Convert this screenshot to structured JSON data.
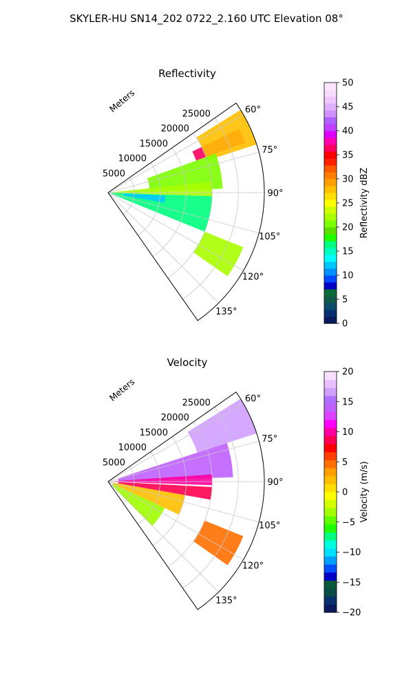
{
  "figure": {
    "suptitle": "SKYLER-HU  SN14_202  0722_2.160 UTC Elevation 08°"
  },
  "colors": {
    "reflectivity_cmap": [
      "#0a1a5a",
      "#06306e",
      "#0c4a6a",
      "#0f5a4a",
      "#0a6a3a",
      "#0000c8",
      "#0048ff",
      "#0090ff",
      "#00c8ff",
      "#00ffff",
      "#00ffc0",
      "#00ff80",
      "#20ff00",
      "#5ae000",
      "#7cff00",
      "#a8ff00",
      "#d0ff00",
      "#ffff00",
      "#ffe000",
      "#ffc000",
      "#ffa000",
      "#ff8000",
      "#ff5a00",
      "#ff2000",
      "#ff0000",
      "#ff0060",
      "#ff00b0",
      "#e000ff",
      "#c040ff",
      "#b060ff",
      "#d090ff",
      "#e0b0ff",
      "#f0c8ff",
      "#f8dcff",
      "#ffe8ff"
    ],
    "velocity_cmap": [
      "#0a1a5a",
      "#06306e",
      "#0c4a4a",
      "#0a5a3a",
      "#0000c8",
      "#0050ff",
      "#00a0ff",
      "#00e0ff",
      "#00ffe0",
      "#00ff80",
      "#20ff00",
      "#60ff00",
      "#a0ff00",
      "#d0ff00",
      "#ffff00",
      "#ffe000",
      "#ffc000",
      "#ffa000",
      "#ff7000",
      "#ff4000",
      "#ff0000",
      "#ff0050",
      "#ff00a0",
      "#ff00ff",
      "#e040ff",
      "#c060ff",
      "#b070ff",
      "#d0a0ff",
      "#e8c0ff",
      "#f8e0ff"
    ]
  },
  "chart_data": [
    {
      "type": "heatmap",
      "subtype": "polar-sector",
      "title": "Reflectivity",
      "radial_label": "Meters",
      "r_ticks": [
        "5000",
        "10000",
        "15000",
        "20000",
        "25000"
      ],
      "r_max": 30000,
      "theta_ticks": [
        "60°",
        "75°",
        "90°",
        "105°",
        "120°",
        "135°"
      ],
      "theta_range_deg": [
        55,
        145
      ],
      "colorbar": {
        "label": "Reflectivity dBZ",
        "ticks": [
          "50",
          "45",
          "40",
          "35",
          "30",
          "25",
          "20",
          "15",
          "10",
          "5",
          "0"
        ],
        "range": [
          0,
          50
        ]
      },
      "regions": [
        {
          "az_range": [
            64,
            70
          ],
          "r_range": [
            18000,
            28000
          ],
          "value": 36
        },
        {
          "az_range": [
            58,
            72
          ],
          "r_range": [
            20000,
            30000
          ],
          "value": 28
        },
        {
          "az_range": [
            70,
            88
          ],
          "r_range": [
            8000,
            22000
          ],
          "value": 20
        },
        {
          "az_range": [
            84,
            92
          ],
          "r_range": [
            1000,
            20000
          ],
          "value": 22
        },
        {
          "az_range": [
            92,
            112
          ],
          "r_range": [
            500,
            20000
          ],
          "value": 16
        },
        {
          "az_range": [
            112,
            125
          ],
          "r_range": [
            20000,
            28000
          ],
          "value": 22
        },
        {
          "az_range": [
            93,
            100
          ],
          "r_range": [
            3000,
            11000
          ],
          "value": 12
        }
      ]
    },
    {
      "type": "heatmap",
      "subtype": "polar-sector",
      "title": "Velocity",
      "radial_label": "Meters",
      "r_ticks": [
        "5000",
        "10000",
        "15000",
        "20000",
        "25000"
      ],
      "r_max": 30000,
      "theta_ticks": [
        "60°",
        "75°",
        "90°",
        "105°",
        "120°",
        "135°"
      ],
      "theta_range_deg": [
        55,
        145
      ],
      "colorbar": {
        "label": "Velocity (m/s)",
        "ticks": [
          "20",
          "15",
          "10",
          "5",
          "0",
          "−5",
          "−10",
          "−15",
          "−20"
        ],
        "range": [
          -20,
          20
        ]
      },
      "regions": [
        {
          "az_range": [
            58,
            72
          ],
          "r_range": [
            18000,
            30000
          ],
          "value": 16
        },
        {
          "az_range": [
            72,
            88
          ],
          "r_range": [
            2000,
            24000
          ],
          "value": 14
        },
        {
          "az_range": [
            86,
            92
          ],
          "r_range": [
            1000,
            20000
          ],
          "value": 10
        },
        {
          "az_range": [
            93,
            100
          ],
          "r_range": [
            2000,
            20000
          ],
          "value": 8
        },
        {
          "az_range": [
            100,
            115
          ],
          "r_range": [
            1000,
            15000
          ],
          "value": 2
        },
        {
          "az_range": [
            112,
            125
          ],
          "r_range": [
            20000,
            28000
          ],
          "value": 5
        },
        {
          "az_range": [
            115,
            135
          ],
          "r_range": [
            1000,
            12000
          ],
          "value": -3
        }
      ]
    }
  ]
}
